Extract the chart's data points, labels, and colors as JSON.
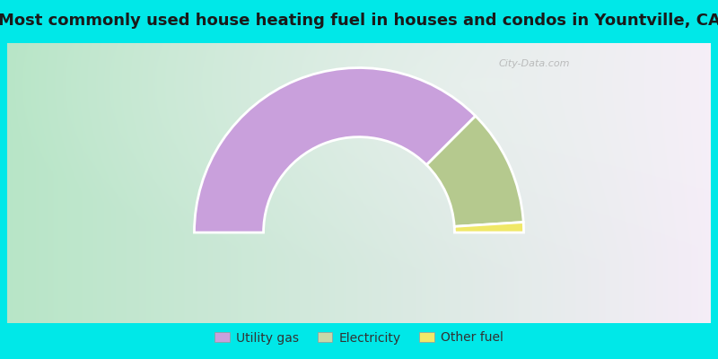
{
  "title": "Most commonly used house heating fuel in houses and condos in Yountville, CA",
  "segments": [
    {
      "label": "Utility gas",
      "value": 75.0,
      "color": "#C9A0DC"
    },
    {
      "label": "Electricity",
      "value": 23.0,
      "color": "#B5C98E"
    },
    {
      "label": "Other fuel",
      "value": 2.0,
      "color": "#F0E868"
    }
  ],
  "legend_colors": [
    "#C9A0DC",
    "#C8D8A8",
    "#F0E868"
  ],
  "legend_labels": [
    "Utility gas",
    "Electricity",
    "Other fuel"
  ],
  "bg_outer": "#00E8E8",
  "title_fontsize": 13,
  "watermark": "City-Data.com"
}
